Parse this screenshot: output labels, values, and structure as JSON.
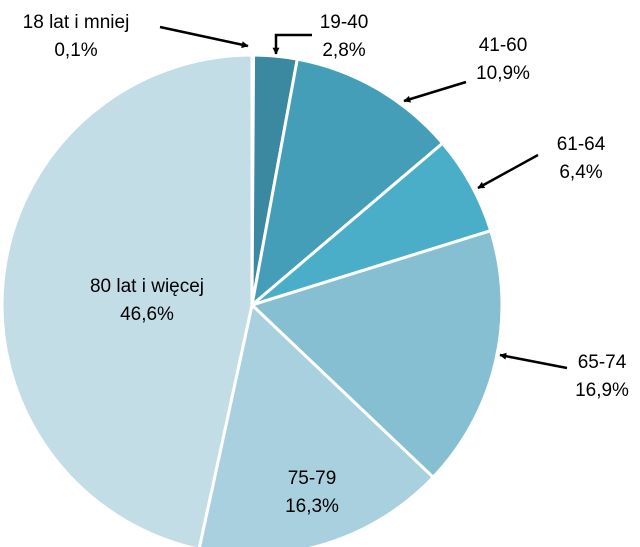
{
  "chart_data": {
    "type": "pie",
    "title": "",
    "legend": "none",
    "slices": [
      {
        "label": "18 lat i mniej",
        "percent_label": "0,1%",
        "value": 0.1,
        "color": "#2e6f84"
      },
      {
        "label": "19-40",
        "percent_label": "2,8%",
        "value": 2.8,
        "color": "#3a89a0"
      },
      {
        "label": "41-60",
        "percent_label": "10,9%",
        "value": 10.9,
        "color": "#459eb7"
      },
      {
        "label": "61-64",
        "percent_label": "6,4%",
        "value": 6.4,
        "color": "#4baec8"
      },
      {
        "label": "65-74",
        "percent_label": "16,9%",
        "value": 16.9,
        "color": "#86bfd2"
      },
      {
        "label": "75-79",
        "percent_label": "16,3%",
        "value": 16.3,
        "color": "#a8d0de"
      },
      {
        "label": "80 lat i więcej",
        "percent_label": "46,6%",
        "value": 46.6,
        "color": "#c3dde6"
      }
    ]
  }
}
